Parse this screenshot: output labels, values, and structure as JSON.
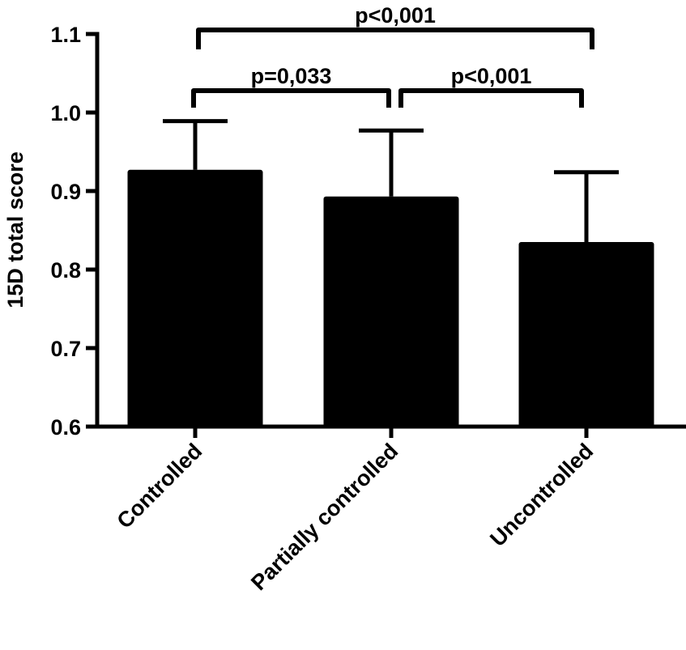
{
  "chart_data": {
    "type": "bar",
    "title": "",
    "xlabel": "",
    "ylabel": "15D total score",
    "ylim": [
      0.6,
      1.1
    ],
    "yticks": [
      0.6,
      0.7,
      0.8,
      0.9,
      1.0,
      1.1
    ],
    "ytick_labels": [
      "0.6",
      "0.7",
      "0.8",
      "0.9",
      "1.0",
      "1.1"
    ],
    "categories": [
      "Controlled",
      "Partially controlled",
      "Uncontrolled"
    ],
    "values": [
      0.927,
      0.893,
      0.835
    ],
    "error_upper": [
      0.062,
      0.084,
      0.089
    ],
    "error_type": "SD (upper only)",
    "bar_color": "#000000",
    "grid": false,
    "legend": null,
    "annotations": [
      {
        "from": 0,
        "to": 1,
        "label": "p=0,033",
        "level": 1
      },
      {
        "from": 1,
        "to": 2,
        "label": "p<0,001",
        "level": 1
      },
      {
        "from": 0,
        "to": 2,
        "label": "p<0,001",
        "level": 2
      }
    ]
  }
}
